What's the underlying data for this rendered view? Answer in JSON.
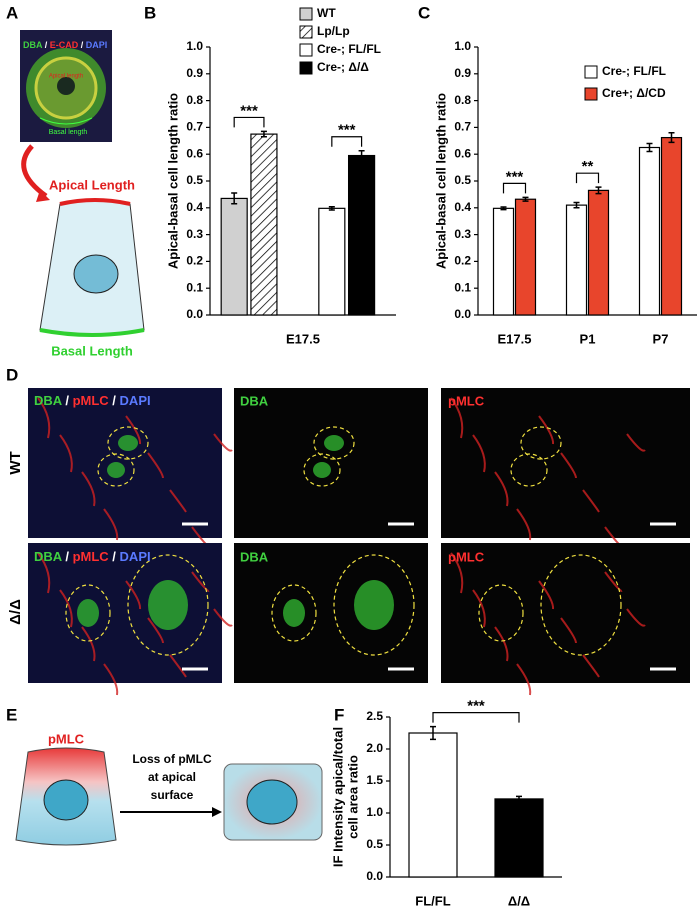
{
  "chart_data": [
    {
      "type": "bar",
      "panel": "B",
      "ylabel": "Apical-basal cell length ratio",
      "categories": [
        "E17.5"
      ],
      "series": [
        {
          "name": "WT",
          "color": "#d0d0d0",
          "values": [
            0.435
          ],
          "errors": [
            0.02
          ]
        },
        {
          "name": "Lp/Lp",
          "color": "#ffffff",
          "hatch": true,
          "values": [
            0.675
          ],
          "errors": [
            0.01
          ]
        },
        {
          "name": "Cre-; FL/FL",
          "color": "#ffffff",
          "values": [
            0.398
          ],
          "errors": [
            0.006
          ]
        },
        {
          "name": "Cre-; Δ/Δ",
          "color": "#000000",
          "values": [
            0.595
          ],
          "errors": [
            0.018
          ]
        }
      ],
      "annotations": [
        "***",
        "***"
      ],
      "ylim": [
        0,
        1.0
      ],
      "yticks": [
        {
          "value": 0,
          "label": "0.0"
        },
        0.1,
        0.2,
        0.3,
        0.4,
        0.5,
        0.6,
        0.7,
        0.8,
        0.9,
        {
          "value": 1,
          "label": "1.0"
        }
      ]
    },
    {
      "type": "bar",
      "panel": "C",
      "ylabel": "Apical-basal cell length ratio",
      "categories": [
        "E17.5",
        "P1",
        "P7"
      ],
      "series": [
        {
          "name": "Cre-; FL/FL",
          "color": "#ffffff",
          "values": [
            0.398,
            0.41,
            0.625
          ],
          "errors": [
            0.005,
            0.01,
            0.015
          ]
        },
        {
          "name": "Cre+; Δ/CD",
          "color": "#e8452c",
          "values": [
            0.432,
            0.465,
            0.662
          ],
          "errors": [
            0.007,
            0.012,
            0.018
          ]
        }
      ],
      "annotations": [
        "***",
        "**"
      ],
      "ylim": [
        0,
        1.0
      ],
      "yticks": [
        {
          "value": 0,
          "label": "0.0"
        },
        0.1,
        0.2,
        0.3,
        0.4,
        0.5,
        0.6,
        0.7,
        0.8,
        0.9,
        {
          "value": 1,
          "label": "1.0"
        }
      ]
    },
    {
      "type": "bar",
      "panel": "F",
      "ylabel": [
        "IF Intensity apical/total",
        "cell area ratio"
      ],
      "categories": [
        "FL/FL",
        "Δ/Δ"
      ],
      "values": [
        2.25,
        1.22
      ],
      "errors": [
        0.1,
        0.04
      ],
      "colors": [
        "#ffffff",
        "#000000"
      ],
      "annotations": [
        "***"
      ],
      "ylim": [
        0,
        2.5
      ],
      "yticks": [
        {
          "value": 0,
          "label": "0.0"
        },
        0.5,
        {
          "value": 1,
          "label": "1.0"
        },
        1.5,
        {
          "value": 2,
          "label": "2.0"
        },
        2.5
      ]
    }
  ],
  "panel_a": {
    "letter": "A",
    "stain": [
      "DBA",
      "/",
      "E-CAD",
      "/",
      "DAPI"
    ],
    "apical_small": "Apical length",
    "basal_small": "Basal length",
    "apical": "Apical Length",
    "basal": "Basal Length"
  },
  "panel_d": {
    "letter": "D",
    "rows": [
      "WT",
      "Δ/Δ"
    ],
    "merge": [
      "DBA",
      "/",
      "pMLC",
      "/",
      "DAPI"
    ],
    "channels": [
      "DBA",
      "pMLC"
    ]
  },
  "panel_e": {
    "letter": "E",
    "pmlc": "pMLC",
    "text": [
      "Loss of pMLC",
      "at apical",
      "surface"
    ]
  }
}
